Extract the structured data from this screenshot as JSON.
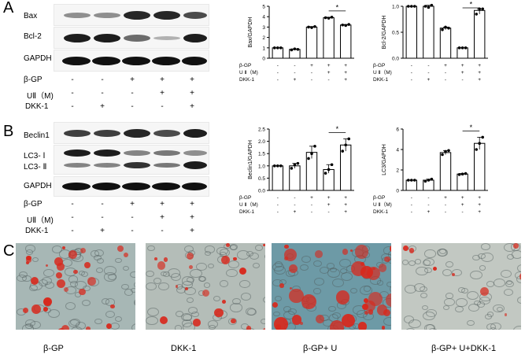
{
  "panels": {
    "A": "A",
    "B": "B",
    "C": "C"
  },
  "blotA": {
    "rows": [
      "Bax",
      "Bcl-2",
      "GAPDH"
    ]
  },
  "blotB": {
    "rows": [
      "Beclin1",
      "LC3- Ⅰ",
      "LC3- Ⅱ",
      "GAPDH"
    ]
  },
  "treatment": {
    "labels": [
      "β-GP",
      "UⅡ（M)",
      "DKK-1"
    ],
    "rows": [
      [
        "-",
        "-",
        "+",
        "+",
        "+"
      ],
      [
        "-",
        "-",
        "-",
        "+",
        "+"
      ],
      [
        "-",
        "+",
        "-",
        "-",
        "+"
      ]
    ]
  },
  "chart_data": [
    {
      "type": "bar",
      "ylabel": "Bax/GAPDH",
      "ylim": [
        0,
        5
      ],
      "yticks": [
        "0",
        "1",
        "2",
        "3",
        "4",
        "5"
      ],
      "values": [
        1.0,
        0.85,
        3.0,
        3.9,
        3.2
      ],
      "points": [
        [
          1.0,
          1.0,
          1.0
        ],
        [
          0.8,
          0.9,
          0.85
        ],
        [
          3.0,
          2.95,
          3.05
        ],
        [
          3.9,
          3.85,
          3.95
        ],
        [
          3.2,
          3.15,
          3.25
        ]
      ],
      "sig": {
        "from": 3,
        "to": 4,
        "label": "*"
      },
      "row_labels": [
        "β-GP",
        "U Ⅱ（M)",
        "DKK-1"
      ],
      "rows": [
        [
          "-",
          "-",
          "+",
          "+",
          "+"
        ],
        [
          "-",
          "-",
          "-",
          "+",
          "+"
        ],
        [
          "-",
          "+",
          "-",
          "-",
          "+"
        ]
      ]
    },
    {
      "type": "bar",
      "ylabel": "Bcl-2/GAPDH",
      "ylim": [
        0,
        1.0
      ],
      "yticks": [
        "0.0",
        "0.5",
        "1.0"
      ],
      "values": [
        1.0,
        1.0,
        0.58,
        0.2,
        0.92
      ],
      "points": [
        [
          1.0,
          1.0,
          1.0
        ],
        [
          1.0,
          0.98,
          1.02
        ],
        [
          0.55,
          0.6,
          0.58
        ],
        [
          0.2,
          0.2,
          0.2
        ],
        [
          0.85,
          0.95,
          0.95
        ]
      ],
      "sig": {
        "from": 3,
        "to": 4,
        "label": "*"
      },
      "row_labels": [
        "β-GP",
        "U Ⅱ（M)",
        "DKK-1"
      ],
      "rows": [
        [
          "-",
          "-",
          "+",
          "+",
          "+"
        ],
        [
          "-",
          "-",
          "-",
          "+",
          "+"
        ],
        [
          "-",
          "+",
          "-",
          "-",
          "+"
        ]
      ]
    },
    {
      "type": "bar",
      "ylabel": "Beclin1/GAPDH",
      "ylim": [
        0,
        2.5
      ],
      "yticks": [
        "0.0",
        "0.5",
        "1.0",
        "1.5",
        "2.0",
        "2.5"
      ],
      "values": [
        1.0,
        1.0,
        1.55,
        0.85,
        1.85
      ],
      "points": [
        [
          1.0,
          1.0,
          1.0
        ],
        [
          0.9,
          1.05,
          1.1
        ],
        [
          1.3,
          1.5,
          1.8
        ],
        [
          0.7,
          0.85,
          1.05
        ],
        [
          1.6,
          1.85,
          2.1
        ]
      ],
      "sig": {
        "from": 3,
        "to": 4,
        "label": "*"
      },
      "row_labels": [
        "β-GP",
        "U Ⅱ（M)",
        "DKK-1"
      ],
      "rows": [
        [
          "-",
          "-",
          "+",
          "+",
          "+"
        ],
        [
          "-",
          "-",
          "-",
          "+",
          "+"
        ],
        [
          "-",
          "+",
          "-",
          "-",
          "+"
        ]
      ]
    },
    {
      "type": "bar",
      "ylabel": "LC3/GAPDH",
      "ylim": [
        0,
        6
      ],
      "yticks": [
        "0",
        "2",
        "4",
        "6"
      ],
      "values": [
        1.0,
        1.0,
        3.7,
        1.6,
        4.6
      ],
      "points": [
        [
          1.0,
          1.0,
          1.0
        ],
        [
          0.9,
          1.0,
          1.1
        ],
        [
          3.5,
          3.8,
          3.9
        ],
        [
          1.55,
          1.6,
          1.65
        ],
        [
          4.0,
          4.6,
          5.2
        ]
      ],
      "sig": {
        "from": 3,
        "to": 4,
        "label": "*"
      },
      "row_labels": [
        "β-GP",
        "U Ⅱ（M)",
        "DKK-1"
      ],
      "rows": [
        [
          "-",
          "-",
          "+",
          "+",
          "+"
        ],
        [
          "-",
          "-",
          "-",
          "+",
          "+"
        ],
        [
          "-",
          "+",
          "-",
          "-",
          "+"
        ]
      ]
    }
  ],
  "micrographs": [
    {
      "caption": "β-GP",
      "stain": "heavy"
    },
    {
      "caption": "DKK-1",
      "stain": "medium"
    },
    {
      "caption": "β-GP+ U",
      "stain": "very-heavy"
    },
    {
      "caption": "β-GP+ U+DKK-1",
      "stain": "light"
    }
  ],
  "colors": {
    "band": "#111111",
    "stain": "#d8281c",
    "cells_bg": "#b9c4c0",
    "cells_bg_teal": "#6f9fa8"
  }
}
